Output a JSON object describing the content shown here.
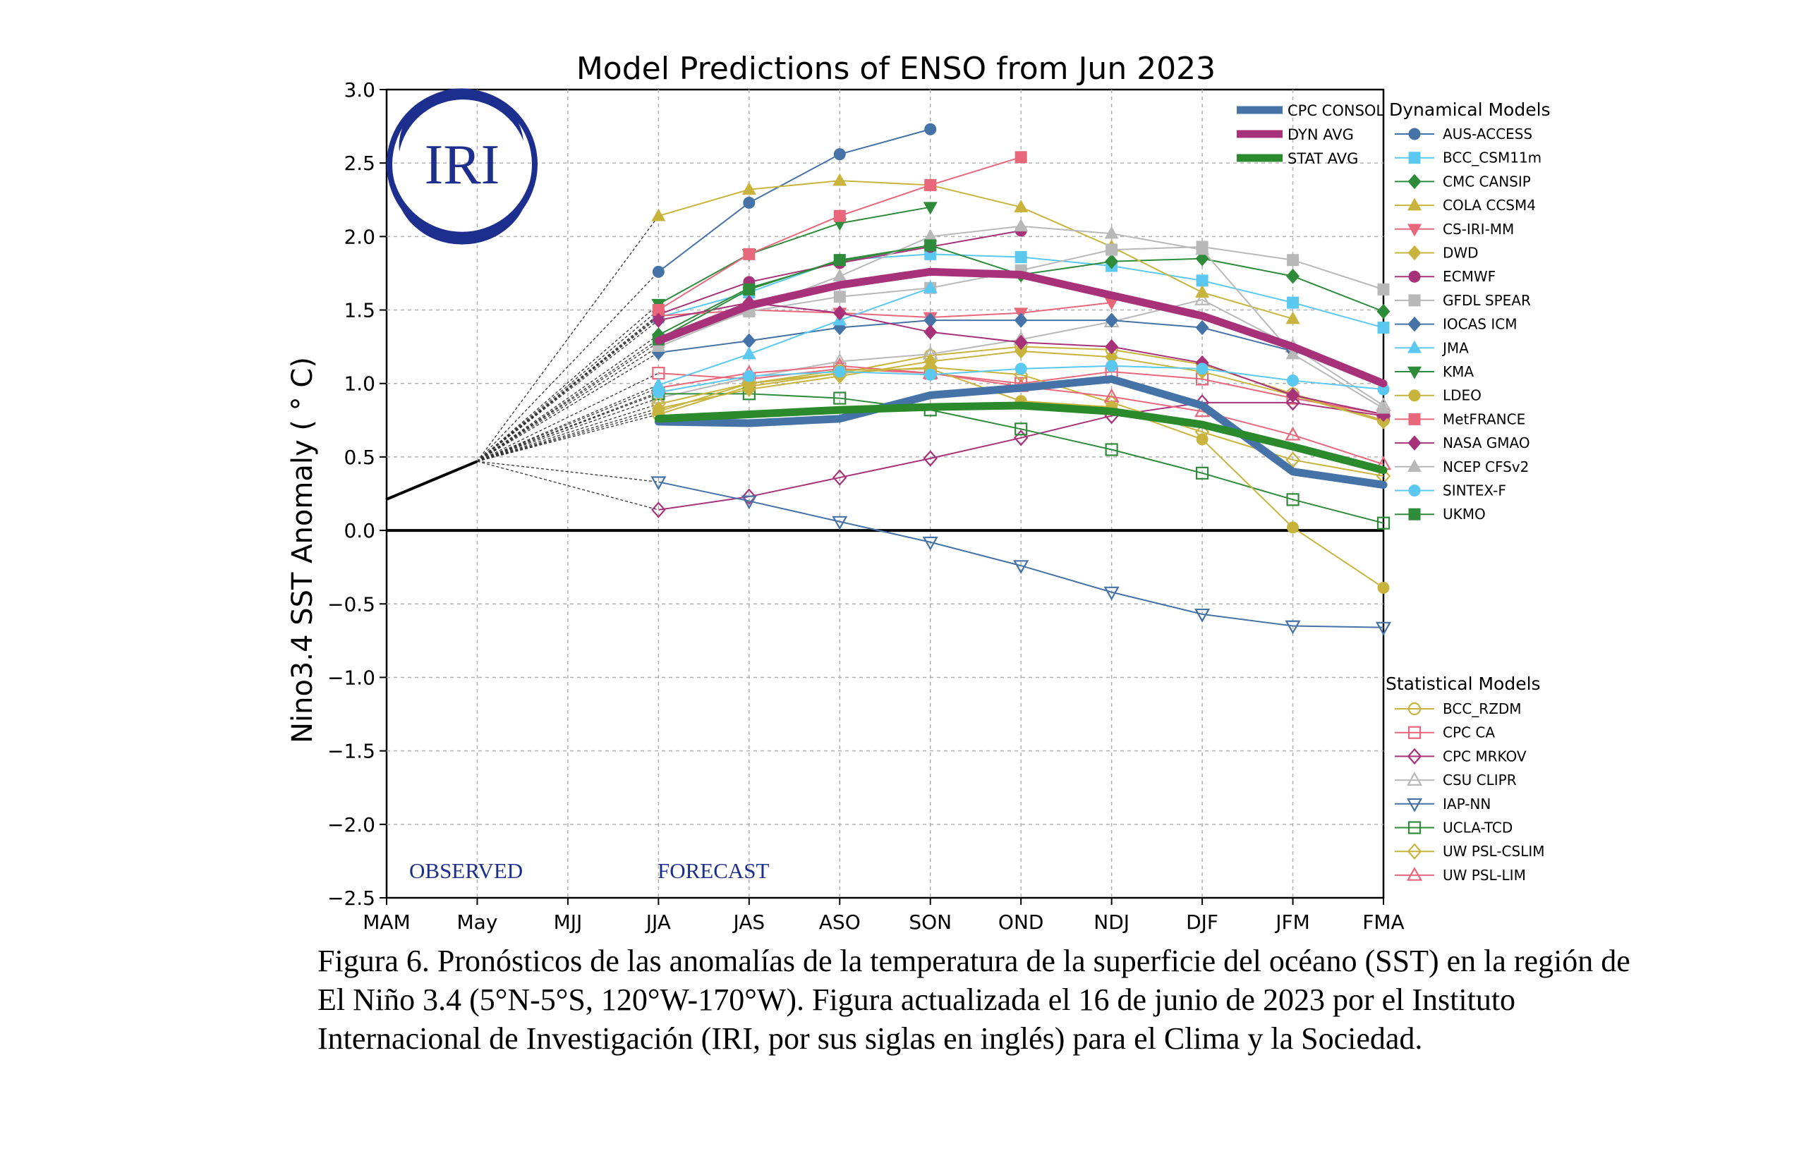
{
  "chart_data": {
    "type": "line",
    "title": "Model Predictions of ENSO from Jun 2023",
    "ylabel": "Nino3.4 SST Anomaly ( ° C)",
    "xlabel": "",
    "categories": [
      "MAM",
      "May",
      "MJJ",
      "JJA",
      "JAS",
      "ASO",
      "SON",
      "OND",
      "NDJ",
      "DJF",
      "JFM",
      "FMA"
    ],
    "ylim": [
      -2.5,
      3.0
    ],
    "yticks": [
      "3.0",
      "2.5",
      "2.0",
      "1.5",
      "1.0",
      "0.5",
      "0.0",
      "−0.5",
      "−1.0",
      "−1.5",
      "−2.0",
      "−2.5"
    ],
    "grid": true,
    "zero_line": true,
    "logo_text": "IRI",
    "annotations": {
      "observed": "OBSERVED",
      "forecast": "FORECAST"
    },
    "observed": [
      0.21,
      0.47
    ],
    "legend_dynamical_title": "Dynamical Models",
    "legend_statistical_title": "Statistical Models",
    "averages": [
      {
        "name": "CPC CONSOL",
        "color": "#4573a8",
        "values": [
          0.74,
          0.73,
          0.76,
          0.92,
          0.97,
          1.03,
          0.85,
          0.4,
          0.31
        ]
      },
      {
        "name": "DYN AVG",
        "color": "#a8327a",
        "values": [
          1.29,
          1.53,
          1.67,
          1.76,
          1.74,
          1.6,
          1.46,
          1.25,
          1.0
        ]
      },
      {
        "name": "STAT AVG",
        "color": "#2b8a2b",
        "values": [
          0.76,
          0.79,
          0.82,
          0.84,
          0.85,
          0.81,
          0.72,
          0.57,
          0.41
        ]
      }
    ],
    "dynamical": [
      {
        "name": "AUS-ACCESS",
        "color": "#4572a7",
        "marker": "circle",
        "values": [
          1.76,
          2.23,
          2.56,
          2.73
        ]
      },
      {
        "name": "BCC_CSM11m",
        "color": "#5bc8f0",
        "marker": "square",
        "values": [
          1.45,
          1.62,
          1.84,
          1.88,
          1.86,
          1.8,
          1.7,
          1.55,
          1.38
        ]
      },
      {
        "name": "CMC CANSIP",
        "color": "#2e8b3a",
        "marker": "diamond",
        "values": [
          1.33,
          1.65,
          1.83,
          1.94,
          1.74,
          1.83,
          1.85,
          1.73,
          1.49
        ]
      },
      {
        "name": "COLA CCSM4",
        "color": "#c8b43c",
        "marker": "triangle-up",
        "values": [
          2.14,
          2.32,
          2.38,
          2.35,
          2.2,
          1.93,
          1.62,
          1.44
        ]
      },
      {
        "name": "CS-IRI-MM",
        "color": "#e8677a",
        "marker": "triangle-down",
        "values": [
          1.46,
          1.5,
          1.48,
          1.45,
          1.48,
          1.55
        ]
      },
      {
        "name": "DWD",
        "color": "#c8b43c",
        "marker": "diamond",
        "values": [
          0.83,
          0.96,
          1.05,
          1.15,
          1.22,
          1.18,
          1.08,
          0.92,
          0.74
        ]
      },
      {
        "name": "ECMWF",
        "color": "#a8327a",
        "marker": "circle",
        "values": [
          1.47,
          1.69,
          1.82,
          1.93,
          2.04
        ]
      },
      {
        "name": "GFDL SPEAR",
        "color": "#b8b8b8",
        "marker": "square",
        "values": [
          1.28,
          1.49,
          1.59,
          1.65,
          1.77,
          1.91,
          1.93,
          1.84,
          1.64
        ]
      },
      {
        "name": "IOCAS ICM",
        "color": "#4572a7",
        "marker": "diamond",
        "values": [
          1.21,
          1.29,
          1.38,
          1.43,
          1.43,
          1.43,
          1.38,
          1.22
        ]
      },
      {
        "name": "JMA",
        "color": "#5bc8f0",
        "marker": "triangle-up",
        "values": [
          0.99,
          1.2,
          1.43,
          1.65
        ]
      },
      {
        "name": "KMA",
        "color": "#2e8b3a",
        "marker": "triangle-down",
        "values": [
          1.54,
          1.88,
          2.09,
          2.2
        ]
      },
      {
        "name": "LDEO",
        "color": "#c8b43c",
        "marker": "circle",
        "values": [
          0.81,
          1.0,
          1.09,
          1.1,
          0.88,
          0.84,
          0.62,
          0.02,
          -0.39
        ]
      },
      {
        "name": "MetFRANCE",
        "color": "#e8677a",
        "marker": "square",
        "values": [
          1.5,
          1.88,
          2.14,
          2.35,
          2.54
        ]
      },
      {
        "name": "NASA GMAO",
        "color": "#a8327a",
        "marker": "diamond",
        "values": [
          1.43,
          1.55,
          1.48,
          1.35,
          1.28,
          1.25,
          1.14,
          0.92,
          0.79
        ]
      },
      {
        "name": "NCEP CFSv2",
        "color": "#b8b8b8",
        "marker": "triangle-up",
        "values": [
          1.25,
          1.5,
          1.73,
          2.0,
          2.07,
          2.02,
          1.91,
          1.2,
          0.83
        ]
      },
      {
        "name": "SINTEX-F",
        "color": "#5bc8f0",
        "marker": "circle",
        "values": [
          0.94,
          1.05,
          1.08,
          1.06,
          1.1,
          1.12,
          1.1,
          1.02,
          0.96
        ]
      },
      {
        "name": "UKMO",
        "color": "#2e8b3a",
        "marker": "square",
        "values": [
          1.3,
          1.64,
          1.84,
          1.94
        ]
      }
    ],
    "statistical": [
      {
        "name": "BCC_RZDM",
        "color": "#c8b43c",
        "marker": "circle-open",
        "values": [
          0.79,
          0.98,
          1.07,
          1.19,
          1.25,
          1.23,
          1.13,
          0.93,
          0.75
        ]
      },
      {
        "name": "CPC CA",
        "color": "#e8677a",
        "marker": "square-open",
        "values": [
          1.07,
          1.03,
          1.1,
          1.07,
          1.0,
          1.08,
          1.03,
          0.9,
          0.79
        ]
      },
      {
        "name": "CPC MRKOV",
        "color": "#a8327a",
        "marker": "diamond-open",
        "values": [
          0.14,
          0.23,
          0.36,
          0.49,
          0.63,
          0.78,
          0.87,
          0.87,
          0.78
        ]
      },
      {
        "name": "CSU CLIPR",
        "color": "#b8b8b8",
        "marker": "triangle-up-open",
        "values": [
          0.9,
          1.04,
          1.15,
          1.2,
          1.3,
          1.42,
          1.57,
          1.25,
          0.85
        ]
      },
      {
        "name": "IAP-NN",
        "color": "#4572a7",
        "marker": "triangle-down-open",
        "values": [
          0.33,
          0.2,
          0.06,
          -0.08,
          -0.24,
          -0.42,
          -0.57,
          -0.65,
          -0.66
        ]
      },
      {
        "name": "UCLA-TCD",
        "color": "#2e8b3a",
        "marker": "square-open",
        "values": [
          0.93,
          0.93,
          0.9,
          0.82,
          0.69,
          0.55,
          0.39,
          0.21,
          0.05
        ]
      },
      {
        "name": "UW PSL-CSLIM",
        "color": "#c8b43c",
        "marker": "diamond-open",
        "values": [
          0.86,
          1.0,
          1.07,
          1.11,
          1.06,
          0.87,
          0.67,
          0.48,
          0.37
        ]
      },
      {
        "name": "UW PSL-LIM",
        "color": "#e8677a",
        "marker": "triangle-up-open",
        "values": [
          0.97,
          1.07,
          1.12,
          1.07,
          0.98,
          0.91,
          0.81,
          0.65,
          0.45
        ]
      }
    ]
  },
  "caption": "Figura 6. Pronósticos de las anomalías de la temperatura de la superficie del océano (SST) en la región de El Niño 3.4 (5°N-5°S, 120°W-170°W). Figura actualizada el 16 de junio de 2023 por el Instituto Internacional de Investigación (IRI, por sus siglas en inglés) para el Clima y la Sociedad."
}
